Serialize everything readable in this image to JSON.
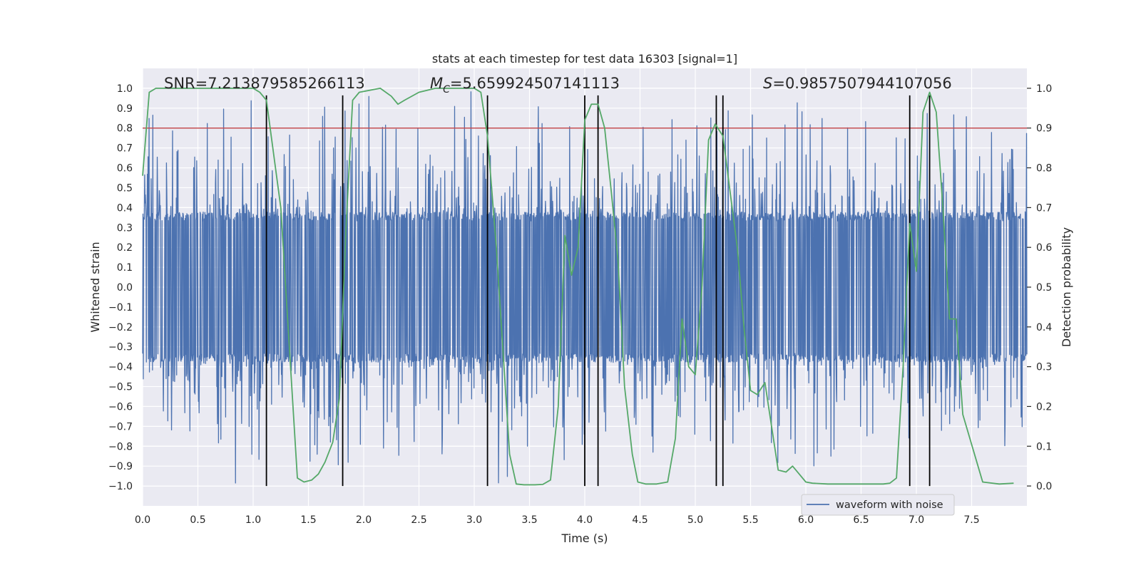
{
  "chart_data": {
    "type": "line",
    "title": "stats at each timestep for test data 16303 [signal=1]",
    "xlabel": "Time (s)",
    "ylabel": "Whitened strain",
    "y2label": "Detection probability",
    "xlim": [
      0,
      8
    ],
    "ylim": [
      -1.1,
      1.1
    ],
    "y2lim": [
      -0.05,
      1.05
    ],
    "xticks": [
      "0.0",
      "0.5",
      "1.0",
      "1.5",
      "2.0",
      "2.5",
      "3.0",
      "3.5",
      "4.0",
      "4.5",
      "5.0",
      "5.5",
      "6.0",
      "6.5",
      "7.0",
      "7.5"
    ],
    "yticks": [
      "1.0",
      "0.9",
      "0.8",
      "0.7",
      "0.6",
      "0.5",
      "0.4",
      "0.3",
      "0.2",
      "0.1",
      "0.0",
      "-0.1",
      "-0.2",
      "-0.3",
      "-0.4",
      "-0.5",
      "-0.6",
      "-0.7",
      "-0.8",
      "-0.9",
      "-1.0"
    ],
    "y2ticks": [
      "1.0",
      "0.9",
      "0.8",
      "0.7",
      "0.6",
      "0.5",
      "0.4",
      "0.3",
      "0.2",
      "0.1",
      "0.0"
    ],
    "annotations": {
      "snr": "SNR=7.213879585266113",
      "mc_symbol": "M",
      "mc_sub": "C",
      "mc_value": "=5.659924507141113",
      "s_symbol": "S",
      "s_value": "=0.9857507944107056"
    },
    "legend": {
      "label": "waveform with noise",
      "position": "lower-right"
    },
    "threshold": {
      "value": 0.9,
      "axis": "y2",
      "color": "#c44e52"
    },
    "vlines": [
      1.12,
      1.81,
      3.12,
      4.0,
      4.12,
      5.19,
      5.25,
      6.94,
      7.12
    ],
    "waveform": {
      "name": "waveform with noise",
      "color": "#4c72b0",
      "seed": 16303,
      "core": 0.37,
      "spike_max": 1.0
    },
    "probability": {
      "name": "detection probability",
      "color": "#55a868",
      "x": [
        0.0,
        0.06,
        0.12,
        1.0,
        1.06,
        1.12,
        1.25,
        1.4,
        1.46,
        1.53,
        1.59,
        1.65,
        1.72,
        1.78,
        1.84,
        1.9,
        1.96,
        2.15,
        2.25,
        2.31,
        2.37,
        2.5,
        2.65,
        2.8,
        3.0,
        3.06,
        3.12,
        3.2,
        3.32,
        3.38,
        3.45,
        3.55,
        3.62,
        3.69,
        3.76,
        3.82,
        3.88,
        3.94,
        4.0,
        4.06,
        4.12,
        4.18,
        4.24,
        4.3,
        4.36,
        4.43,
        4.48,
        4.55,
        4.65,
        4.75,
        4.82,
        4.88,
        4.94,
        5.0,
        5.06,
        5.12,
        5.18,
        5.25,
        5.31,
        5.38,
        5.44,
        5.5,
        5.56,
        5.63,
        5.69,
        5.75,
        5.82,
        5.88,
        5.94,
        6.0,
        6.06,
        6.2,
        6.5,
        6.7,
        6.76,
        6.82,
        6.88,
        6.94,
        7.0,
        7.06,
        7.12,
        7.18,
        7.24,
        7.3,
        7.36,
        7.42,
        7.6,
        7.75,
        7.88
      ],
      "y": [
        0.78,
        0.99,
        1.0,
        1.0,
        0.99,
        0.97,
        0.7,
        0.02,
        0.01,
        0.015,
        0.03,
        0.06,
        0.11,
        0.22,
        0.65,
        0.97,
        0.99,
        1.0,
        0.98,
        0.96,
        0.97,
        0.99,
        1.0,
        1.0,
        1.0,
        0.99,
        0.88,
        0.6,
        0.08,
        0.005,
        0.003,
        0.003,
        0.004,
        0.015,
        0.2,
        0.63,
        0.53,
        0.6,
        0.92,
        0.96,
        0.96,
        0.9,
        0.74,
        0.57,
        0.25,
        0.08,
        0.01,
        0.005,
        0.005,
        0.01,
        0.12,
        0.42,
        0.3,
        0.28,
        0.5,
        0.87,
        0.91,
        0.88,
        0.75,
        0.6,
        0.4,
        0.24,
        0.23,
        0.26,
        0.15,
        0.04,
        0.035,
        0.05,
        0.03,
        0.01,
        0.007,
        0.005,
        0.005,
        0.005,
        0.007,
        0.02,
        0.3,
        0.66,
        0.54,
        0.94,
        0.99,
        0.94,
        0.7,
        0.42,
        0.42,
        0.18,
        0.01,
        0.005,
        0.007
      ]
    }
  }
}
